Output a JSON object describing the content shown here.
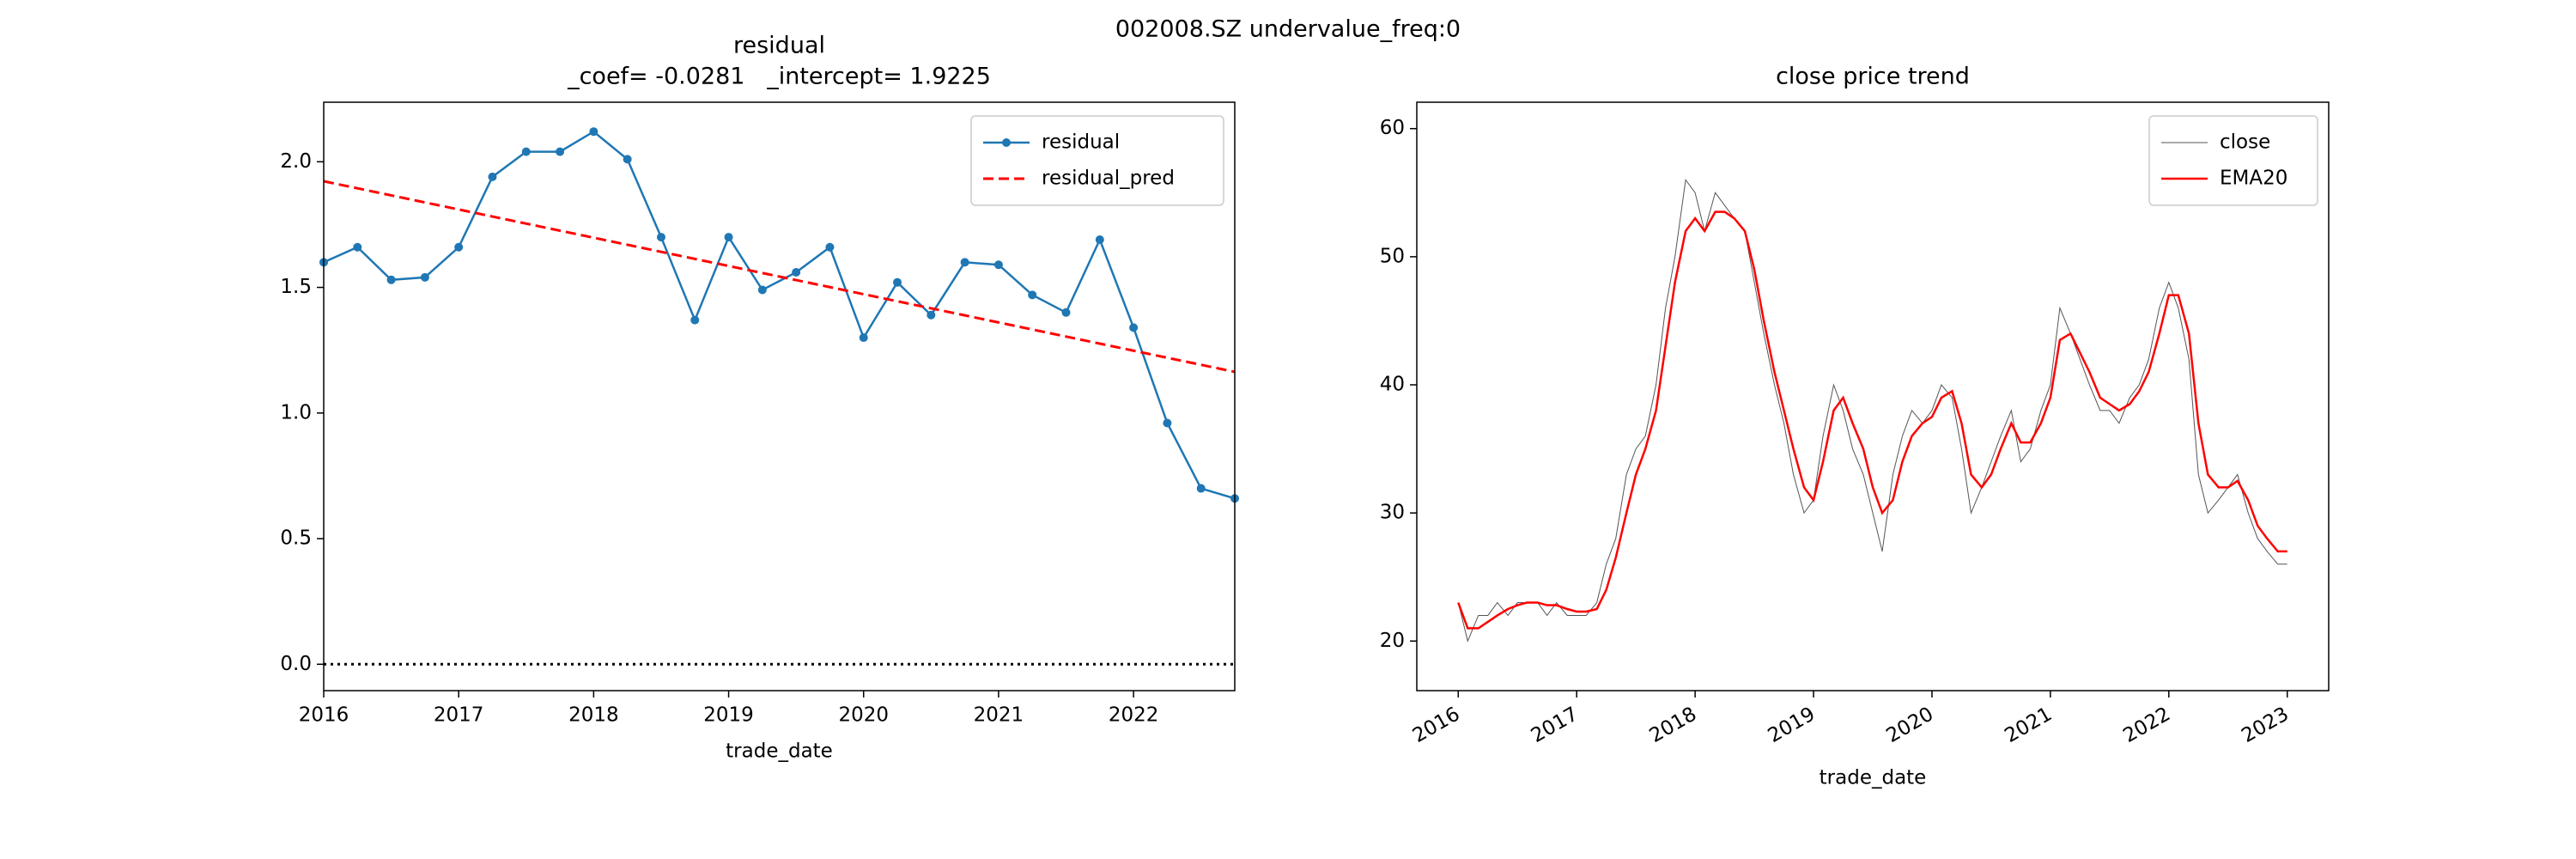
{
  "title": "002008.SZ undervalue_freq:0",
  "chart_data": [
    {
      "type": "line",
      "title": "residual",
      "subtitle": "_coef= -0.0281   _intercept= 1.9225",
      "xlabel": "trade_date",
      "x": [
        2016,
        2016.25,
        2016.5,
        2016.75,
        2017,
        2017.25,
        2017.5,
        2017.75,
        2018,
        2018.25,
        2018.5,
        2018.75,
        2019,
        2019.25,
        2019.5,
        2019.75,
        2020,
        2020.25,
        2020.5,
        2020.75,
        2021,
        2021.25,
        2021.5,
        2021.75,
        2022,
        2022.25,
        2022.5,
        2022.75
      ],
      "series": [
        {
          "name": "residual",
          "color": "#1f77b4",
          "marker": "o",
          "linestyle": "solid",
          "values": [
            1.6,
            1.66,
            1.53,
            1.54,
            1.66,
            1.94,
            2.04,
            2.04,
            2.12,
            2.01,
            1.7,
            1.37,
            1.7,
            1.49,
            1.56,
            1.66,
            1.3,
            1.52,
            1.39,
            1.6,
            1.59,
            1.47,
            1.4,
            1.69,
            1.34,
            0.96,
            0.7,
            0.66
          ]
        },
        {
          "name": "residual_pred",
          "color": "#ff0000",
          "linestyle": "dashed",
          "values": [
            1.9225,
            1.8944,
            1.8663,
            1.8382,
            1.8101,
            1.782,
            1.7539,
            1.7258,
            1.6977,
            1.6696,
            1.6415,
            1.6134,
            1.5853,
            1.5572,
            1.5291,
            1.501,
            1.4729,
            1.4448,
            1.4167,
            1.3886,
            1.3605,
            1.3324,
            1.3043,
            1.2762,
            1.2481,
            1.22,
            1.1919,
            1.1638
          ]
        }
      ],
      "hline": 0,
      "xlim": [
        2016,
        2022.75
      ],
      "xticks": [
        2016,
        2017,
        2018,
        2019,
        2020,
        2021,
        2022
      ],
      "ylim": [
        -0.105,
        2.237
      ],
      "yticks": [
        {
          "value": 0,
          "label": "0.0"
        },
        {
          "value": 0.5,
          "label": "0.5"
        },
        {
          "value": 1,
          "label": "1.0"
        },
        {
          "value": 1.5,
          "label": "1.5"
        },
        {
          "value": 2,
          "label": "2.0"
        }
      ],
      "legend": "upper right"
    },
    {
      "type": "line",
      "title": "close price trend",
      "xlabel": "trade_date",
      "x": [
        2016,
        2016.08,
        2016.17,
        2016.25,
        2016.33,
        2016.42,
        2016.5,
        2016.58,
        2016.67,
        2016.75,
        2016.83,
        2016.92,
        2017,
        2017.08,
        2017.17,
        2017.25,
        2017.33,
        2017.42,
        2017.5,
        2017.58,
        2017.67,
        2017.75,
        2017.83,
        2017.92,
        2018,
        2018.08,
        2018.17,
        2018.25,
        2018.33,
        2018.42,
        2018.5,
        2018.58,
        2018.67,
        2018.75,
        2018.83,
        2018.92,
        2019,
        2019.08,
        2019.17,
        2019.25,
        2019.33,
        2019.42,
        2019.5,
        2019.58,
        2019.67,
        2019.75,
        2019.83,
        2019.92,
        2020,
        2020.08,
        2020.17,
        2020.25,
        2020.33,
        2020.42,
        2020.5,
        2020.58,
        2020.67,
        2020.75,
        2020.83,
        2020.92,
        2021,
        2021.08,
        2021.17,
        2021.25,
        2021.33,
        2021.42,
        2021.5,
        2021.58,
        2021.67,
        2021.75,
        2021.83,
        2021.92,
        2022,
        2022.08,
        2022.17,
        2022.25,
        2022.33,
        2022.42,
        2022.5,
        2022.58,
        2022.67,
        2022.75,
        2022.83,
        2022.92,
        2023
      ],
      "series": [
        {
          "name": "close",
          "color": "#555555",
          "linestyle": "thin",
          "values": [
            23,
            20,
            22,
            22,
            23,
            22,
            23,
            23,
            23,
            22,
            23,
            22,
            22,
            22,
            23,
            26,
            28,
            33,
            35,
            36,
            40,
            46,
            50,
            56,
            55,
            52,
            55,
            54,
            53,
            52,
            48,
            44,
            40,
            37,
            33,
            30,
            31,
            36,
            40,
            38,
            35,
            33,
            30,
            27,
            33,
            36,
            38,
            37,
            38,
            40,
            39,
            35,
            30,
            32,
            34,
            36,
            38,
            34,
            35,
            38,
            40,
            46,
            44,
            42,
            40,
            38,
            38,
            37,
            39,
            40,
            42,
            46,
            48,
            46,
            42,
            33,
            30,
            31,
            32,
            33,
            30,
            28,
            27,
            26,
            26
          ]
        },
        {
          "name": "EMA20",
          "color": "#ff0000",
          "linestyle": "solid",
          "values": [
            23,
            21,
            21,
            21.5,
            22,
            22.5,
            22.8,
            23,
            23,
            22.8,
            22.8,
            22.5,
            22.3,
            22.3,
            22.5,
            24,
            26.5,
            30,
            33,
            35,
            38,
            43,
            48,
            52,
            53,
            52,
            53.5,
            53.5,
            53,
            52,
            49,
            45,
            41,
            38,
            35,
            32,
            31,
            34,
            38,
            39,
            37,
            35,
            32,
            30,
            31,
            34,
            36,
            37,
            37.5,
            39,
            39.5,
            37,
            33,
            32,
            33,
            35,
            37,
            35.5,
            35.5,
            37,
            39,
            43.5,
            44,
            42.5,
            41,
            39,
            38.5,
            38,
            38.5,
            39.5,
            41,
            44,
            47,
            47,
            44,
            37,
            33,
            32,
            32,
            32.5,
            31,
            29,
            28,
            27,
            27
          ]
        }
      ],
      "xlim": [
        2015.65,
        2023.35
      ],
      "xticks": [
        2016,
        2017,
        2018,
        2019,
        2020,
        2021,
        2022,
        2023
      ],
      "xtick_rotation": 30,
      "ylim": [
        16.13,
        62.06
      ],
      "yticks": [
        20,
        30,
        40,
        50,
        60
      ],
      "legend": "upper right"
    }
  ]
}
